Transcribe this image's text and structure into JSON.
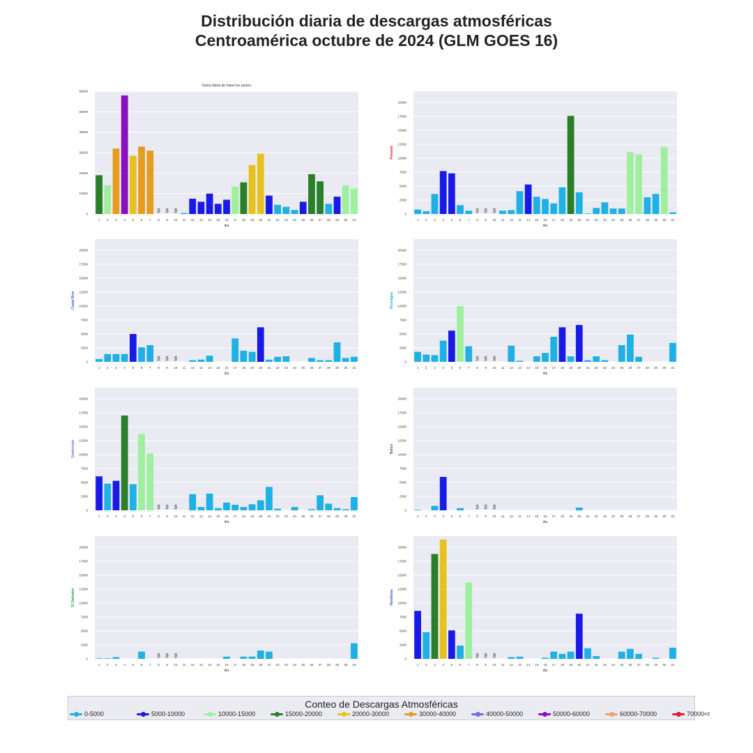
{
  "title_line1": "Distribución diaria de descargas atmosféricas",
  "title_line2": "Centroamérica octubre de 2024 (GLM GOES 16)",
  "legend": {
    "title": "Conteo de Descargas Atmosféricas",
    "items": [
      {
        "label": "0-5000",
        "color": "#1fb0e6"
      },
      {
        "label": "5000-10000",
        "color": "#1a1ae6"
      },
      {
        "label": "10000-15000",
        "color": "#9ef09e"
      },
      {
        "label": "15000-20000",
        "color": "#2a7f2a"
      },
      {
        "label": "20000-30000",
        "color": "#e6c21f"
      },
      {
        "label": "30000-40000",
        "color": "#e69c1f"
      },
      {
        "label": "40000-50000",
        "color": "#7a6ae0"
      },
      {
        "label": "50000-60000",
        "color": "#8a0fbf"
      },
      {
        "label": "60000-70000",
        "color": "#f0a070"
      },
      {
        "label": "70000<r",
        "color": "#d81f3a"
      }
    ]
  },
  "chart_data": [
    {
      "type": "bar",
      "title": "Suma diaria de todos los países",
      "xlabel": "dia",
      "ylabel": "",
      "ylabel_color": "#222222",
      "ylim": [
        0,
        60000
      ],
      "yticks": [
        0,
        10000,
        20000,
        30000,
        40000,
        50000,
        60000
      ],
      "categories": [
        "1",
        "2",
        "3",
        "4",
        "5",
        "6",
        "7",
        "8",
        "9",
        "10",
        "11",
        "12",
        "13",
        "14",
        "15",
        "16",
        "17",
        "18",
        "19",
        "20",
        "21",
        "22",
        "23",
        "24",
        "25",
        "26",
        "27",
        "28",
        "29",
        "30",
        "31"
      ],
      "values": [
        19000,
        14000,
        32000,
        58000,
        28500,
        33000,
        31000,
        null,
        null,
        null,
        500,
        7500,
        6000,
        10000,
        5000,
        7000,
        13500,
        15500,
        24000,
        29500,
        9000,
        4500,
        3500,
        2000,
        6000,
        19500,
        16000,
        5000,
        8500,
        14000,
        12500
      ],
      "colors": [
        "#2a7f2a",
        "#9ef09e",
        "#e69c1f",
        "#8a0fbf",
        "#e6c21f",
        "#e69c1f",
        "#e69c1f",
        "",
        "",
        "",
        "#1fb0e6",
        "#1a1ae6",
        "#1a1ae6",
        "#1a1ae6",
        "#1a1ae6",
        "#1a1ae6",
        "#9ef09e",
        "#2a7f2a",
        "#e6c21f",
        "#e6c21f",
        "#1a1ae6",
        "#1fb0e6",
        "#1fb0e6",
        "#1fb0e6",
        "#1a1ae6",
        "#2a7f2a",
        "#2a7f2a",
        "#1fb0e6",
        "#1a1ae6",
        "#9ef09e",
        "#9ef09e"
      ],
      "na_label": "NA"
    },
    {
      "type": "bar",
      "title": "",
      "xlabel": "dia",
      "ylabel": "Panamá",
      "ylabel_color": "#d81f3a",
      "ylim": [
        0,
        22000
      ],
      "yticks": [
        0,
        2500,
        5000,
        7500,
        10000,
        12500,
        15000,
        17500,
        20000
      ],
      "categories": [
        "1",
        "2",
        "3",
        "4",
        "5",
        "6",
        "7",
        "8",
        "9",
        "10",
        "11",
        "12",
        "13",
        "14",
        "15",
        "16",
        "17",
        "18",
        "19",
        "20",
        "21",
        "22",
        "23",
        "24",
        "25",
        "26",
        "27",
        "28",
        "29",
        "30",
        "31"
      ],
      "values": [
        800,
        500,
        3600,
        7700,
        7300,
        1600,
        600,
        null,
        null,
        null,
        600,
        700,
        4100,
        5300,
        3100,
        2700,
        1900,
        4800,
        17600,
        3900,
        100,
        1100,
        2100,
        1000,
        1000,
        11100,
        10700,
        3000,
        3600,
        12000,
        300
      ],
      "colors": [
        "#1fb0e6",
        "#1fb0e6",
        "#1fb0e6",
        "#1a1ae6",
        "#1a1ae6",
        "#1fb0e6",
        "#1fb0e6",
        "",
        "",
        "",
        "#1fb0e6",
        "#1fb0e6",
        "#1fb0e6",
        "#1a1ae6",
        "#1fb0e6",
        "#1fb0e6",
        "#1fb0e6",
        "#1fb0e6",
        "#2a7f2a",
        "#1fb0e6",
        "#1fb0e6",
        "#1fb0e6",
        "#1fb0e6",
        "#1fb0e6",
        "#1fb0e6",
        "#9ef09e",
        "#9ef09e",
        "#1fb0e6",
        "#1fb0e6",
        "#9ef09e",
        "#1fb0e6"
      ],
      "na_label": "NA"
    },
    {
      "type": "bar",
      "title": "",
      "xlabel": "dia",
      "ylabel": "Costa Rica",
      "ylabel_color": "#1f5ad8",
      "ylim": [
        0,
        22000
      ],
      "yticks": [
        0,
        2500,
        5000,
        7500,
        10000,
        12500,
        15000,
        17500,
        20000
      ],
      "categories": [
        "1",
        "2",
        "3",
        "4",
        "5",
        "6",
        "7",
        "8",
        "9",
        "10",
        "11",
        "12",
        "13",
        "14",
        "15",
        "16",
        "17",
        "18",
        "19",
        "20",
        "21",
        "22",
        "23",
        "24",
        "25",
        "26",
        "27",
        "28",
        "29",
        "30",
        "31"
      ],
      "values": [
        500,
        1400,
        1400,
        1400,
        5000,
        2600,
        3000,
        null,
        null,
        null,
        0,
        300,
        400,
        1100,
        0,
        0,
        4200,
        2000,
        1800,
        6200,
        400,
        900,
        1000,
        0,
        0,
        700,
        300,
        300,
        3500,
        700,
        900
      ],
      "colors": [
        "#1fb0e6",
        "#1fb0e6",
        "#1fb0e6",
        "#1fb0e6",
        "#1a1ae6",
        "#1fb0e6",
        "#1fb0e6",
        "",
        "",
        "",
        "#1fb0e6",
        "#1fb0e6",
        "#1fb0e6",
        "#1fb0e6",
        "#1fb0e6",
        "#1fb0e6",
        "#1fb0e6",
        "#1fb0e6",
        "#1fb0e6",
        "#1a1ae6",
        "#1fb0e6",
        "#1fb0e6",
        "#1fb0e6",
        "#1fb0e6",
        "#1fb0e6",
        "#1fb0e6",
        "#1fb0e6",
        "#1fb0e6",
        "#1fb0e6",
        "#1fb0e6",
        "#1fb0e6"
      ],
      "na_label": "NA"
    },
    {
      "type": "bar",
      "title": "",
      "xlabel": "dia",
      "ylabel": "Nicaragua",
      "ylabel_color": "#1fb0e6",
      "ylim": [
        0,
        22000
      ],
      "yticks": [
        0,
        2500,
        5000,
        7500,
        10000,
        12500,
        15000,
        17500,
        20000
      ],
      "categories": [
        "1",
        "2",
        "3",
        "4",
        "5",
        "6",
        "7",
        "8",
        "9",
        "10",
        "11",
        "12",
        "13",
        "14",
        "15",
        "16",
        "17",
        "18",
        "19",
        "20",
        "21",
        "22",
        "23",
        "24",
        "25",
        "26",
        "27",
        "28",
        "29",
        "30",
        "31"
      ],
      "values": [
        1800,
        1300,
        1200,
        3800,
        5600,
        10000,
        2800,
        null,
        null,
        null,
        0,
        2900,
        200,
        0,
        1000,
        1600,
        4500,
        6200,
        1000,
        6600,
        300,
        1000,
        300,
        0,
        3000,
        4900,
        900,
        0,
        0,
        0,
        3400
      ],
      "colors": [
        "#1fb0e6",
        "#1fb0e6",
        "#1fb0e6",
        "#1fb0e6",
        "#1a1ae6",
        "#9ef09e",
        "#1fb0e6",
        "",
        "",
        "",
        "#1fb0e6",
        "#1fb0e6",
        "#1fb0e6",
        "#1fb0e6",
        "#1fb0e6",
        "#1fb0e6",
        "#1fb0e6",
        "#1a1ae6",
        "#1fb0e6",
        "#1a1ae6",
        "#1fb0e6",
        "#1fb0e6",
        "#1fb0e6",
        "#1fb0e6",
        "#1fb0e6",
        "#1fb0e6",
        "#1fb0e6",
        "#1fb0e6",
        "#1fb0e6",
        "#1fb0e6",
        "#1fb0e6"
      ],
      "na_label": "NA"
    },
    {
      "type": "bar",
      "title": "",
      "xlabel": "dia",
      "ylabel": "Guatemala",
      "ylabel_color": "#7a6ae0",
      "ylim": [
        0,
        22000
      ],
      "yticks": [
        0,
        2500,
        5000,
        7500,
        10000,
        12500,
        15000,
        17500,
        20000
      ],
      "categories": [
        "1",
        "2",
        "3",
        "4",
        "5",
        "6",
        "7",
        "8",
        "9",
        "10",
        "11",
        "12",
        "13",
        "14",
        "15",
        "16",
        "17",
        "18",
        "19",
        "20",
        "21",
        "22",
        "23",
        "24",
        "25",
        "26",
        "27",
        "28",
        "29",
        "30",
        "31"
      ],
      "values": [
        6100,
        4800,
        5300,
        17000,
        4700,
        13700,
        10200,
        null,
        null,
        null,
        0,
        2900,
        600,
        3000,
        400,
        1400,
        1000,
        600,
        1100,
        1800,
        4200,
        300,
        0,
        600,
        0,
        200,
        2700,
        1200,
        400,
        200,
        2400
      ],
      "colors": [
        "#1a1ae6",
        "#1fb0e6",
        "#1a1ae6",
        "#2a7f2a",
        "#1fb0e6",
        "#9ef09e",
        "#9ef09e",
        "",
        "",
        "",
        "#1fb0e6",
        "#1fb0e6",
        "#1fb0e6",
        "#1fb0e6",
        "#1fb0e6",
        "#1fb0e6",
        "#1fb0e6",
        "#1fb0e6",
        "#1fb0e6",
        "#1fb0e6",
        "#1fb0e6",
        "#1fb0e6",
        "#1fb0e6",
        "#1fb0e6",
        "#1fb0e6",
        "#1fb0e6",
        "#1fb0e6",
        "#1fb0e6",
        "#1fb0e6",
        "#1fb0e6",
        "#1fb0e6"
      ],
      "na_label": "NA"
    },
    {
      "type": "bar",
      "title": "",
      "xlabel": "dia",
      "ylabel": "Belice",
      "ylabel_color": "#555555",
      "ylim": [
        0,
        22000
      ],
      "yticks": [
        0,
        2500,
        5000,
        7500,
        10000,
        12500,
        15000,
        17500,
        20000
      ],
      "categories": [
        "1",
        "2",
        "3",
        "4",
        "5",
        "6",
        "7",
        "8",
        "9",
        "10",
        "11",
        "12",
        "13",
        "14",
        "15",
        "16",
        "17",
        "18",
        "19",
        "20",
        "21",
        "22",
        "23",
        "24",
        "25",
        "26",
        "27",
        "28",
        "29",
        "30",
        "31"
      ],
      "values": [
        100,
        0,
        800,
        6000,
        0,
        400,
        0,
        null,
        null,
        null,
        0,
        0,
        0,
        0,
        0,
        0,
        0,
        0,
        0,
        500,
        0,
        0,
        0,
        0,
        0,
        0,
        0,
        0,
        0,
        0,
        0
      ],
      "colors": [
        "#1fb0e6",
        "#1fb0e6",
        "#1fb0e6",
        "#1a1ae6",
        "#1fb0e6",
        "#1fb0e6",
        "#1fb0e6",
        "",
        "",
        "",
        "#1fb0e6",
        "#1fb0e6",
        "#1fb0e6",
        "#1fb0e6",
        "#1fb0e6",
        "#1fb0e6",
        "#1fb0e6",
        "#1fb0e6",
        "#1fb0e6",
        "#1fb0e6",
        "#1fb0e6",
        "#1fb0e6",
        "#1fb0e6",
        "#1fb0e6",
        "#1fb0e6",
        "#1fb0e6",
        "#1fb0e6",
        "#1fb0e6",
        "#1fb0e6",
        "#1fb0e6",
        "#1fb0e6"
      ],
      "na_label": "NA"
    },
    {
      "type": "bar",
      "title": "",
      "xlabel": "dia",
      "ylabel": "El Salvador",
      "ylabel_color": "#2a9f2a",
      "ylim": [
        0,
        22000
      ],
      "yticks": [
        0,
        2500,
        5000,
        7500,
        10000,
        12500,
        15000,
        17500,
        20000
      ],
      "categories": [
        "1",
        "2",
        "3",
        "4",
        "5",
        "6",
        "7",
        "8",
        "9",
        "10",
        "11",
        "12",
        "13",
        "14",
        "15",
        "16",
        "17",
        "18",
        "19",
        "20",
        "21",
        "22",
        "23",
        "24",
        "25",
        "26",
        "27",
        "28",
        "29",
        "30",
        "31"
      ],
      "values": [
        100,
        100,
        300,
        0,
        0,
        1300,
        0,
        null,
        null,
        null,
        0,
        0,
        0,
        0,
        0,
        400,
        0,
        400,
        400,
        1500,
        1300,
        0,
        0,
        0,
        0,
        0,
        0,
        0,
        0,
        0,
        2800
      ],
      "colors": [
        "#1fb0e6",
        "#1fb0e6",
        "#1fb0e6",
        "#1fb0e6",
        "#1fb0e6",
        "#1fb0e6",
        "#1fb0e6",
        "",
        "",
        "",
        "#1fb0e6",
        "#1fb0e6",
        "#1fb0e6",
        "#1fb0e6",
        "#1fb0e6",
        "#1fb0e6",
        "#1fb0e6",
        "#1fb0e6",
        "#1fb0e6",
        "#1fb0e6",
        "#1fb0e6",
        "#1fb0e6",
        "#1fb0e6",
        "#1fb0e6",
        "#1fb0e6",
        "#1fb0e6",
        "#1fb0e6",
        "#1fb0e6",
        "#1fb0e6",
        "#1fb0e6",
        "#1fb0e6"
      ],
      "na_label": "NA"
    },
    {
      "type": "bar",
      "title": "",
      "xlabel": "dia",
      "ylabel": "Honduras",
      "ylabel_color": "#1f5ad8",
      "ylim": [
        0,
        22000
      ],
      "yticks": [
        0,
        2500,
        5000,
        7500,
        10000,
        12500,
        15000,
        17500,
        20000
      ],
      "categories": [
        "1",
        "2",
        "3",
        "4",
        "5",
        "6",
        "7",
        "8",
        "9",
        "10",
        "11",
        "12",
        "13",
        "14",
        "15",
        "16",
        "17",
        "18",
        "19",
        "20",
        "21",
        "22",
        "23",
        "24",
        "25",
        "26",
        "27",
        "28",
        "29",
        "30",
        "31"
      ],
      "values": [
        8600,
        4800,
        18800,
        21400,
        5100,
        2400,
        13700,
        null,
        null,
        null,
        0,
        300,
        400,
        0,
        0,
        200,
        1300,
        900,
        1300,
        8100,
        1900,
        500,
        0,
        0,
        1300,
        1800,
        900,
        0,
        200,
        0,
        2000
      ],
      "colors": [
        "#1a1ae6",
        "#1fb0e6",
        "#2a7f2a",
        "#e6c21f",
        "#1a1ae6",
        "#1fb0e6",
        "#9ef09e",
        "",
        "",
        "",
        "#1fb0e6",
        "#1fb0e6",
        "#1fb0e6",
        "#1fb0e6",
        "#1fb0e6",
        "#1fb0e6",
        "#1fb0e6",
        "#1fb0e6",
        "#1fb0e6",
        "#1a1ae6",
        "#1fb0e6",
        "#1fb0e6",
        "#1fb0e6",
        "#1fb0e6",
        "#1fb0e6",
        "#1fb0e6",
        "#1fb0e6",
        "#1fb0e6",
        "#1fb0e6",
        "#1fb0e6",
        "#1fb0e6"
      ],
      "na_label": "NA"
    }
  ]
}
